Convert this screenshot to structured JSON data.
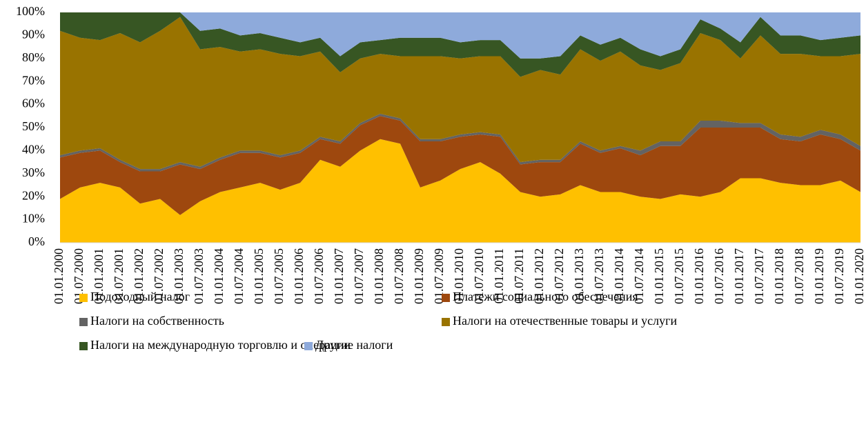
{
  "chart_data": {
    "type": "stacked_area",
    "categories": [
      "01.01.2000",
      "01.07.2000",
      "01.01.2001",
      "01.07.2001",
      "01.01.2002",
      "01.07.2002",
      "01.01.2003",
      "01.07.2003",
      "01.01.2004",
      "01.07.2004",
      "01.01.2005",
      "01.07.2005",
      "01.01.2006",
      "01.07.2006",
      "01.01.2007",
      "01.07.2007",
      "01.01.2008",
      "01.07.2008",
      "01.01.2009",
      "01.07.2009",
      "01.01.2010",
      "01.07.2010",
      "01.01.2011",
      "01.07.2011",
      "01.01.2012",
      "01.07.2012",
      "01.01.2013",
      "01.07.2013",
      "01.01.2014",
      "01.07.2014",
      "01.01.2015",
      "01.07.2015",
      "01.01.2016",
      "01.07.2016",
      "01.01.2017",
      "01.07.2017",
      "01.01.2018",
      "01.07.2018",
      "01.01.2019",
      "01.07.2019",
      "01.01.2020"
    ],
    "series": [
      {
        "name": "Подоходный налог",
        "color": "#ffc000",
        "values": [
          19,
          24,
          26,
          24,
          17,
          19,
          12,
          18,
          22,
          24,
          26,
          23,
          26,
          36,
          33,
          40,
          45,
          43,
          24,
          27,
          32,
          35,
          30,
          22,
          20,
          21,
          25,
          22,
          22,
          20,
          19,
          21,
          20,
          22,
          28,
          28,
          26,
          25,
          25,
          27,
          22
        ]
      },
      {
        "name": "Платежи социального обеспечения",
        "color": "#9e480e",
        "values": [
          18,
          15,
          14,
          11,
          14,
          12,
          22,
          14,
          14,
          15,
          13,
          14,
          13,
          9,
          10,
          11,
          10,
          10,
          20,
          17,
          14,
          12,
          16,
          12,
          15,
          14,
          18,
          17,
          19,
          18,
          23,
          21,
          30,
          28,
          22,
          22,
          19,
          19,
          22,
          18,
          18
        ]
      },
      {
        "name": "Налоги на собственность",
        "color": "#636363",
        "values": [
          1,
          1,
          1,
          1,
          1,
          1,
          1,
          1,
          1,
          1,
          1,
          1,
          1,
          1,
          1,
          1,
          1,
          1,
          1,
          1,
          1,
          1,
          1,
          1,
          1,
          1,
          1,
          1,
          1,
          2,
          2,
          2,
          3,
          3,
          2,
          2,
          2,
          2,
          2,
          2,
          2
        ]
      },
      {
        "name": "Налоги на отечественные товары и услуги",
        "color": "#997300",
        "values": [
          54,
          49,
          47,
          55,
          55,
          60,
          63,
          51,
          48,
          43,
          44,
          44,
          41,
          37,
          30,
          28,
          26,
          27,
          36,
          36,
          33,
          33,
          34,
          37,
          39,
          37,
          40,
          39,
          41,
          37,
          31,
          34,
          38,
          35,
          28,
          38,
          35,
          36,
          32,
          34,
          40
        ]
      },
      {
        "name": "Налоги на международную торговлю и операции",
        "color": "#375623",
        "values": [
          8,
          11,
          12,
          9,
          13,
          8,
          2,
          8,
          8,
          7,
          7,
          7,
          6,
          6,
          7,
          7,
          6,
          8,
          8,
          8,
          7,
          7,
          7,
          8,
          5,
          8,
          6,
          7,
          6,
          7,
          6,
          6,
          6,
          5,
          7,
          8,
          8,
          8,
          7,
          8,
          8
        ]
      },
      {
        "name": "Другие налоги",
        "color": "#8eaadb",
        "values": [
          0,
          0,
          0,
          0,
          0,
          0,
          0,
          8,
          7,
          10,
          9,
          11,
          13,
          11,
          19,
          13,
          12,
          11,
          11,
          11,
          13,
          12,
          12,
          20,
          20,
          19,
          10,
          14,
          11,
          16,
          19,
          16,
          3,
          7,
          13,
          2,
          10,
          10,
          12,
          11,
          10
        ]
      }
    ],
    "ylim": [
      0,
      100
    ],
    "yticks": [
      {
        "value": 0,
        "label": "0%"
      },
      {
        "value": 10,
        "label": "10%"
      },
      {
        "value": 20,
        "label": "20%"
      },
      {
        "value": 30,
        "label": "30%"
      },
      {
        "value": 40,
        "label": "40%"
      },
      {
        "value": 50,
        "label": "50%"
      },
      {
        "value": 60,
        "label": "60%"
      },
      {
        "value": 70,
        "label": "70%"
      },
      {
        "value": 80,
        "label": "80%"
      },
      {
        "value": 90,
        "label": "90%"
      },
      {
        "value": 100,
        "label": "100%"
      }
    ]
  }
}
